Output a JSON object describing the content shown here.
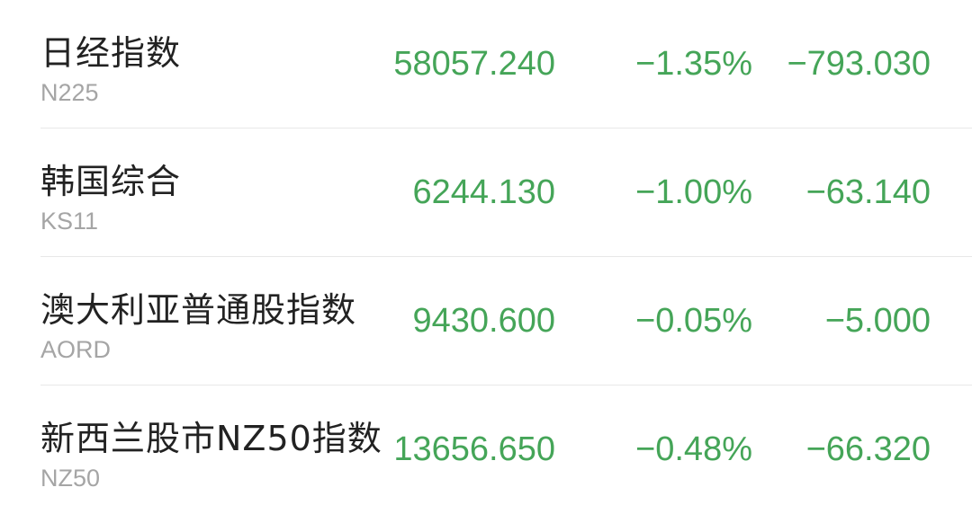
{
  "colors": {
    "down": "#45a558",
    "name": "#222222",
    "code": "#a5a5a5"
  },
  "rows": [
    {
      "name": "日经指数",
      "code": "N225",
      "price": "58057.240",
      "pct": "−1.35%",
      "change": "−793.030"
    },
    {
      "name": "韩国综合",
      "code": "KS11",
      "price": "6244.130",
      "pct": "−1.00%",
      "change": "−63.140"
    },
    {
      "name": "澳大利亚普通股指数",
      "code": "AORD",
      "price": "9430.600",
      "pct": "−0.05%",
      "change": "−5.000"
    },
    {
      "name": "新西兰股市NZ50指数",
      "code": "NZ50",
      "price": "13656.650",
      "pct": "−0.48%",
      "change": "−66.320"
    }
  ]
}
